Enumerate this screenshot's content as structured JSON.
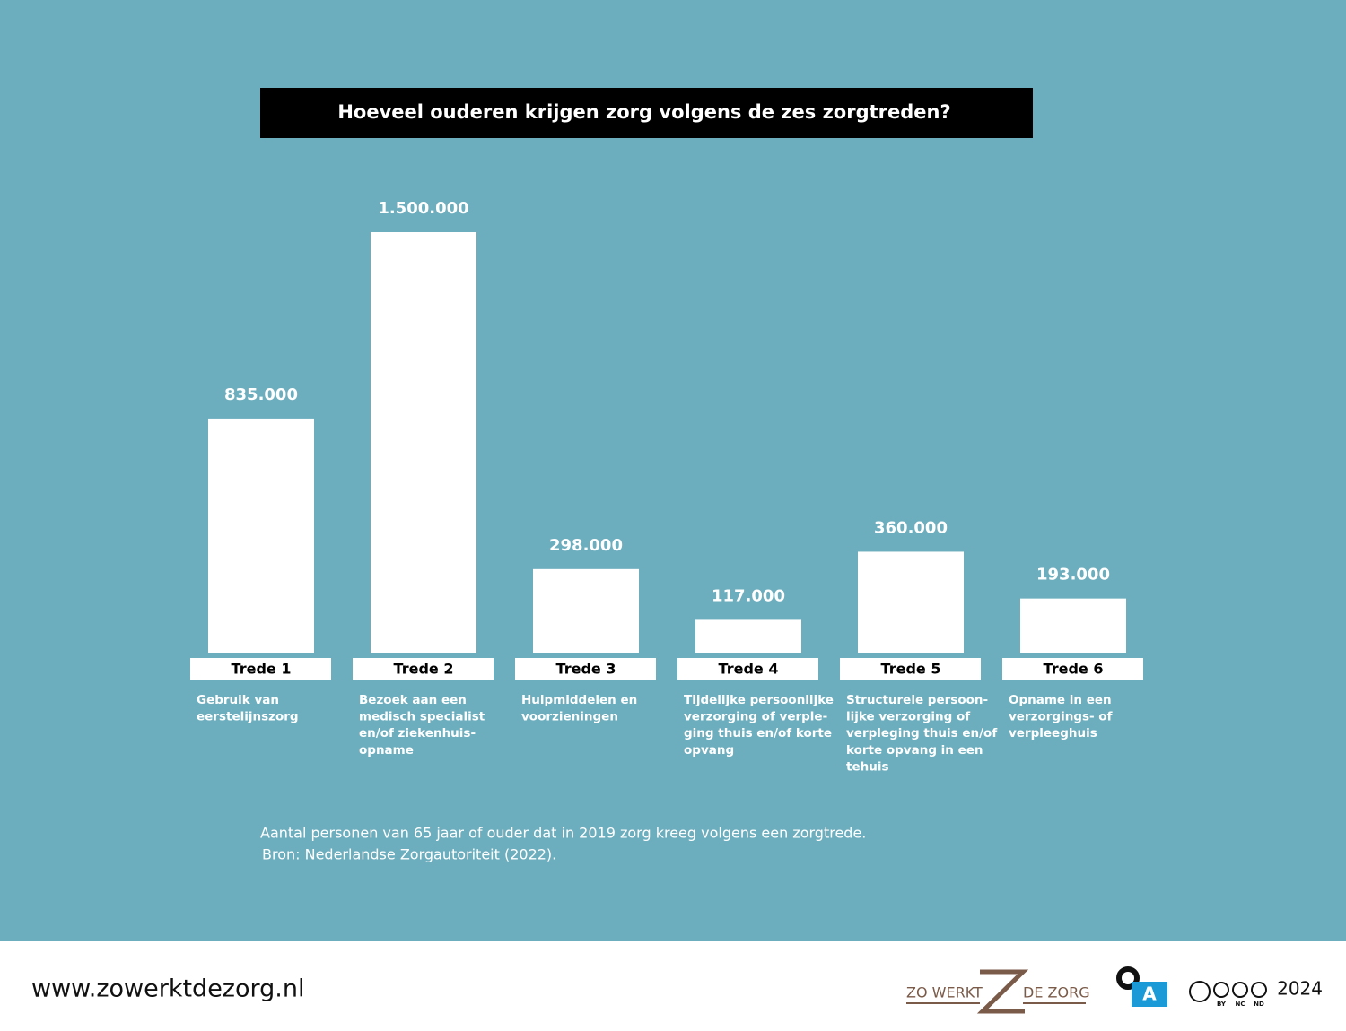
{
  "chart_data": {
    "type": "bar",
    "title": "Hoeveel ouderen krijgen zorg volgens de zes zorgtreden?",
    "categories": [
      "Trede 1",
      "Trede 2",
      "Trede 3",
      "Trede 4",
      "Trede 5",
      "Trede 6"
    ],
    "descriptions": [
      [
        "Gebruik van",
        "eerstelijnszorg"
      ],
      [
        "Bezoek aan een",
        "medisch specialist",
        "en/of ziekenhuis-",
        "opname"
      ],
      [
        "Hulpmiddelen en",
        "voorzieningen"
      ],
      [
        "Tijdelijke persoonlijke",
        "verzorging of verple-",
        "ging thuis en/of korte",
        "opvang"
      ],
      [
        "Structurele persoon-",
        "lijke verzorging of",
        "verpleging thuis en/of",
        "korte opvang in een",
        "tehuis"
      ],
      [
        "Opname in een",
        "verzorgings- of",
        "verpleeghuis"
      ]
    ],
    "values": [
      835000,
      1500000,
      298000,
      117000,
      360000,
      193000
    ],
    "value_labels": [
      "835.000",
      "1.500.000",
      "298.000",
      "117.000",
      "360.000",
      "193.000"
    ],
    "color": "#ffffff",
    "notes": [
      "Aantal personen van 65 jaar of ouder dat in 2019 zorg kreeg volgens een zorgtrede.",
      "Bron: Nederlandse Zorgautoriteit (2022)."
    ]
  },
  "footer": {
    "url": "www.zowerktdezorg.nl",
    "logo_left": "ZO WERKT",
    "logo_right": "DE ZORG",
    "logo_a": "A",
    "license": [
      "BY",
      "NC",
      "ND"
    ],
    "year": "2024"
  }
}
